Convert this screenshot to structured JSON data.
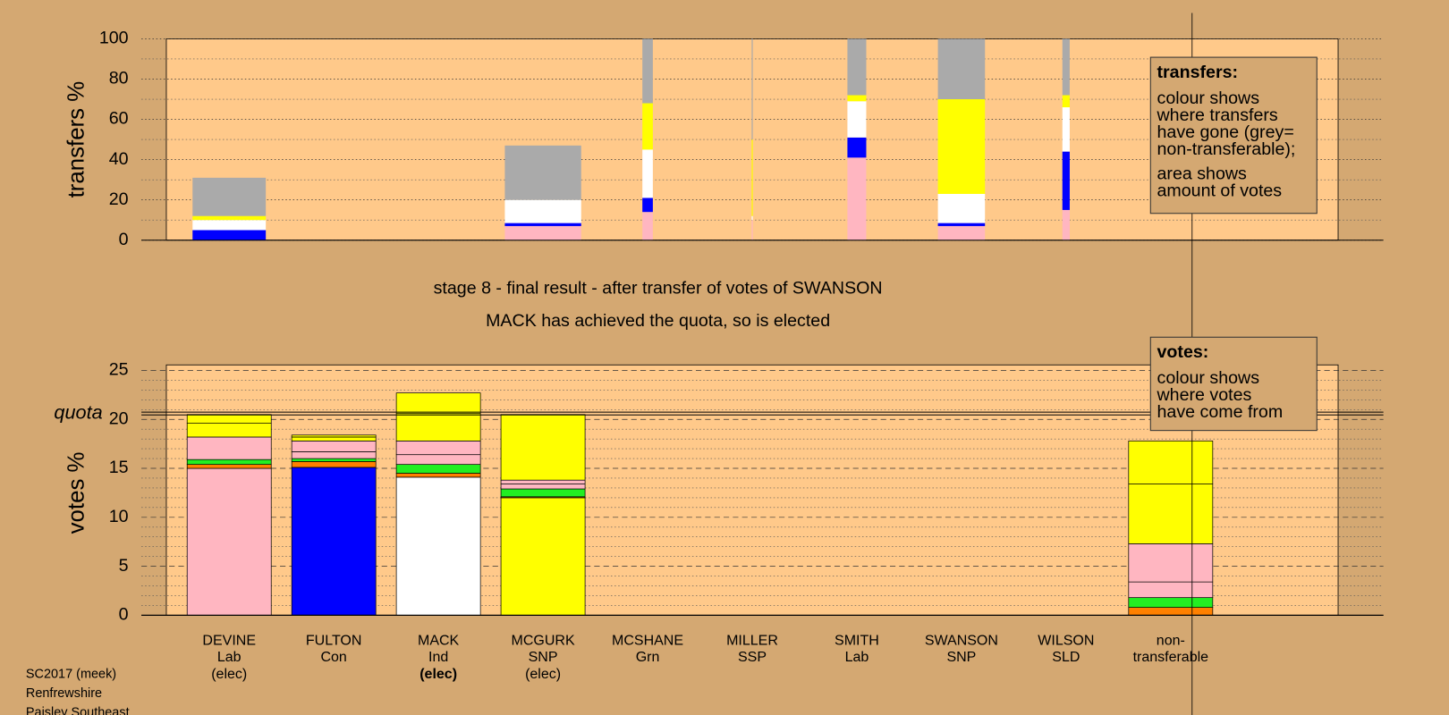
{
  "chart_data": [
    {
      "type": "bar",
      "stacked": true,
      "ylabel": "transfers %",
      "ylim": [
        0,
        100
      ],
      "yticks": [
        0,
        20,
        40,
        60,
        80,
        100
      ],
      "minor_yticks": [
        10,
        30,
        50,
        70,
        90
      ],
      "grid": true,
      "widths": [
        0.7,
        0,
        0,
        0.73,
        0.1,
        0.01,
        0.18,
        0.45,
        0.07
      ],
      "series": [
        {
          "color": "#ffb6c1",
          "values": [
            0,
            0,
            0,
            7,
            14,
            10,
            41,
            7,
            15
          ]
        },
        {
          "color": "#0000ff",
          "values": [
            5,
            0,
            0,
            1.5,
            7,
            0,
            10,
            1.5,
            29
          ]
        },
        {
          "color": "#ffffff",
          "values": [
            5,
            0,
            0,
            11.5,
            24,
            2,
            18,
            14.5,
            22
          ]
        },
        {
          "color": "#ffff00",
          "values": [
            2,
            0,
            0,
            0,
            23,
            38,
            3,
            47,
            6
          ]
        },
        {
          "color": "#aaaaaa",
          "values": [
            19,
            0,
            0,
            27,
            32,
            50,
            28,
            30,
            28
          ]
        }
      ],
      "legend": {
        "title": "transfers:",
        "lines": [
          "colour shows",
          "where transfers",
          "have gone (grey=",
          "non-transferable);",
          "area shows",
          "amount of votes"
        ]
      }
    },
    {
      "type": "stacked_segments",
      "title": [
        "stage 8 - final result - after transfer of votes of SWANSON",
        "MACK has achieved the quota, so is elected"
      ],
      "ylabel": "votes %",
      "ylim": [
        0,
        25
      ],
      "yticks": [
        0,
        5,
        10,
        15,
        20,
        25
      ],
      "minor_yticks": [
        1,
        2,
        3,
        4,
        6,
        7,
        8,
        9,
        11,
        12,
        13,
        14,
        16,
        17,
        18,
        19,
        21,
        22,
        23,
        24
      ],
      "grid": true,
      "quota": 20.6,
      "quota_label": "quota",
      "categories": [
        [
          "DEVINE",
          "Lab",
          "(elec)"
        ],
        [
          "FULTON",
          "Con"
        ],
        [
          "MACK",
          "Ind",
          "(elec)"
        ],
        [
          "MCGURK",
          "SNP",
          "(elec)"
        ],
        [
          "MCSHANE",
          "Grn"
        ],
        [
          "MILLER",
          "SSP"
        ],
        [
          "SMITH",
          "Lab"
        ],
        [
          "SWANSON",
          "SNP"
        ],
        [
          "WILSON",
          "SLD"
        ],
        [
          "non-",
          "transferable"
        ]
      ],
      "stacks": [
        [
          {
            "color": "#ffb6c1",
            "value": 15
          },
          {
            "color": "#ff8000",
            "value": 0.4
          },
          {
            "color": "#22ee22",
            "value": 0.5
          },
          {
            "color": "#ffb6c1",
            "value": 2.3
          },
          {
            "color": "#ffff00",
            "value": 1.4
          },
          {
            "color": "#ffff00",
            "value": 0.9
          }
        ],
        [
          {
            "color": "#0000ff",
            "value": 15.1
          },
          {
            "color": "#ff8000",
            "value": 0.6
          },
          {
            "color": "#22ee22",
            "value": 0.3
          },
          {
            "color": "#ffb6c1",
            "value": 0.7
          },
          {
            "color": "#ffb6c1",
            "value": 1.1
          },
          {
            "color": "#ffff00",
            "value": 0.4
          },
          {
            "color": "#ffff00",
            "value": 0.2
          }
        ],
        [
          {
            "color": "#ffffff",
            "value": 14.1
          },
          {
            "color": "#ff8000",
            "value": 0.4
          },
          {
            "color": "#22ee22",
            "value": 0.9
          },
          {
            "color": "#ffb6c1",
            "value": 1
          },
          {
            "color": "#ffb6c1",
            "value": 1.4
          },
          {
            "color": "#ffff00",
            "value": 2.8
          },
          {
            "color": "#ffff00",
            "value": 2.1
          }
        ],
        [
          {
            "color": "#ffff00",
            "value": 12
          },
          {
            "color": "#ff8000",
            "value": 0.1
          },
          {
            "color": "#22ee22",
            "value": 0.8
          },
          {
            "color": "#ffb6c1",
            "value": 0.5
          },
          {
            "color": "#ffb6c1",
            "value": 0.4
          },
          {
            "color": "#ffff00",
            "value": 6.7
          }
        ],
        [],
        [],
        [],
        [],
        [],
        [
          {
            "color": "#ff8000",
            "value": 0.8
          },
          {
            "color": "#22ee22",
            "value": 1
          },
          {
            "color": "#ffb6c1",
            "value": 1.6
          },
          {
            "color": "#ffb6c1",
            "value": 3.9
          },
          {
            "color": "#ffff00",
            "value": 6.1
          },
          {
            "color": "#ffff00",
            "value": 4.4
          }
        ]
      ],
      "legend": {
        "title": "votes:",
        "lines": [
          "colour shows",
          "where votes",
          "have come from"
        ]
      }
    }
  ],
  "footer": [
    "SC2017 (meek)",
    "Renfrewshire",
    "Paisley Southeast"
  ]
}
